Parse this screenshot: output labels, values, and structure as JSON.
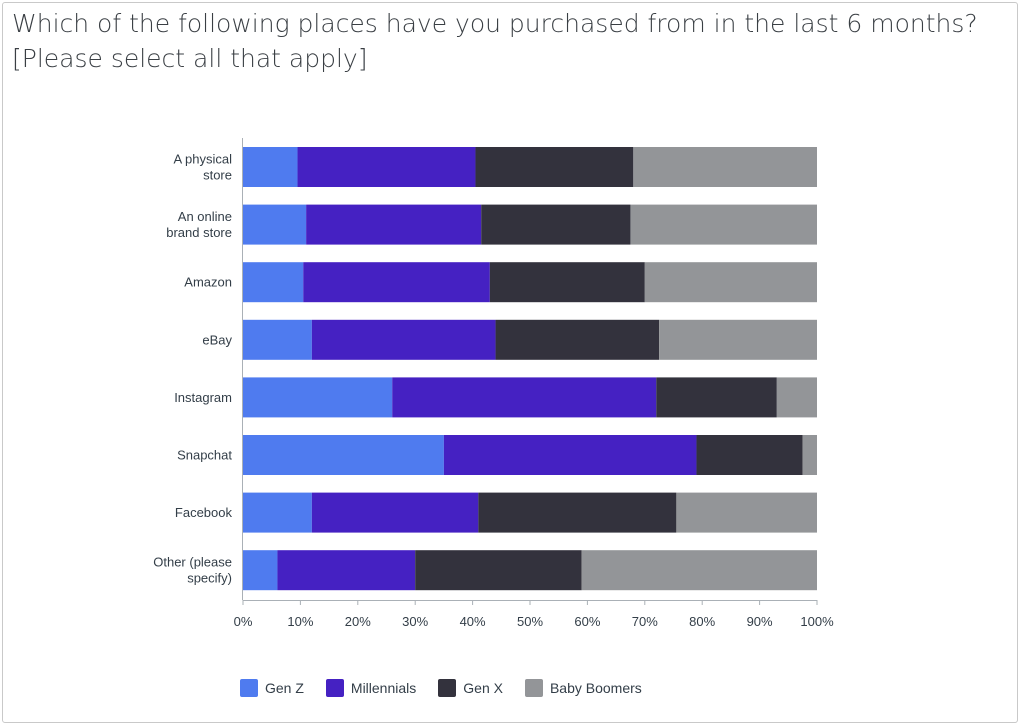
{
  "title_lines": [
    "Which of the following places have you purchased from in the last 6 months?",
    "[Please select all that apply]"
  ],
  "colors": {
    "gen_z": "#4f7bef",
    "millennials": "#4521c2",
    "gen_x": "#33323d",
    "baby_boomers": "#939598",
    "axis": "#aab0b6",
    "grid": "#e6e8ea"
  },
  "chart_data": {
    "type": "bar",
    "orientation": "horizontal",
    "stacked": true,
    "categories": [
      [
        "A physical",
        "store"
      ],
      [
        "An online",
        "brand store"
      ],
      [
        "Amazon"
      ],
      [
        "eBay"
      ],
      [
        "Instagram"
      ],
      [
        "Snapchat"
      ],
      [
        "Facebook"
      ],
      [
        "Other (please",
        "specify)"
      ]
    ],
    "series": [
      {
        "name": "Gen Z",
        "color_key": "gen_z",
        "values": [
          9.5,
          11,
          10.5,
          12,
          26,
          35,
          12,
          6
        ]
      },
      {
        "name": "Millennials",
        "color_key": "millennials",
        "values": [
          31,
          30.5,
          32.5,
          32,
          46,
          44,
          29,
          24
        ]
      },
      {
        "name": "Gen X",
        "color_key": "gen_x",
        "values": [
          27.5,
          26,
          27,
          28.5,
          21,
          18.5,
          34.5,
          29
        ]
      },
      {
        "name": "Baby Boomers",
        "color_key": "baby_boomers",
        "values": [
          32,
          32.5,
          30,
          27.5,
          7,
          2.5,
          24.5,
          41
        ]
      }
    ],
    "xticks": [
      "0%",
      "10%",
      "20%",
      "30%",
      "40%",
      "50%",
      "60%",
      "70%",
      "80%",
      "90%",
      "100%"
    ],
    "xlim": [
      0,
      100
    ],
    "grid": false,
    "legend_position": "bottom-left"
  }
}
